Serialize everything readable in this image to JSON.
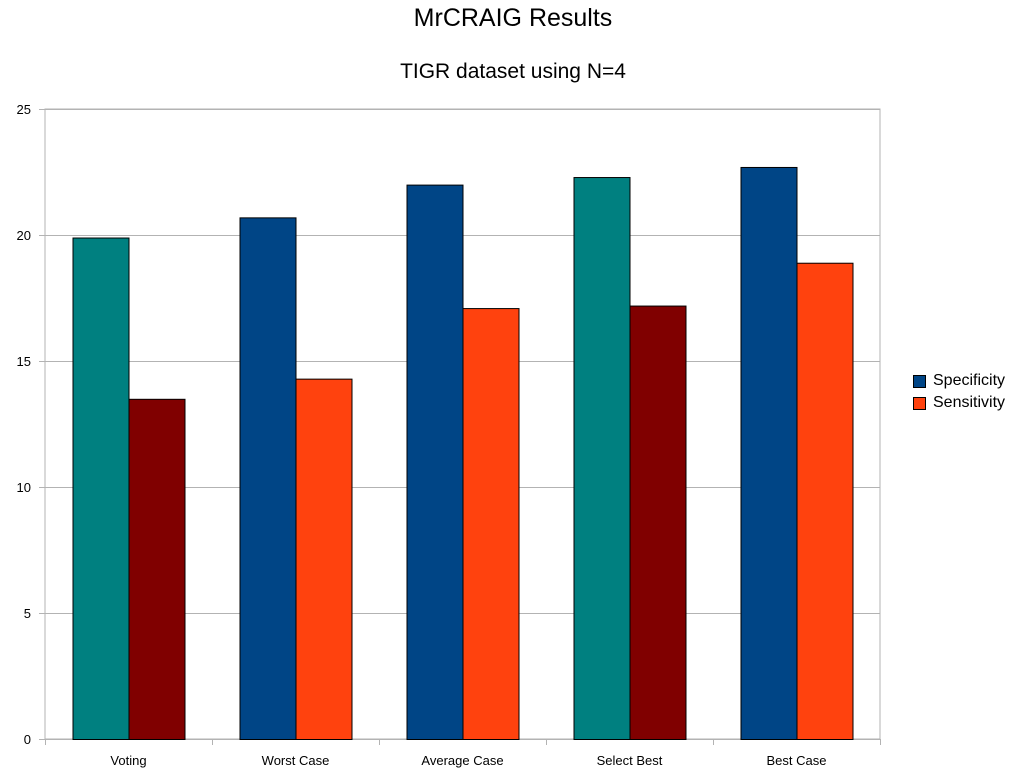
{
  "chart_data": {
    "type": "bar",
    "title": "MrCRAIG Results",
    "subtitle": "TIGR dataset using N=4",
    "xlabel": "",
    "ylabel": "",
    "categories": [
      "Voting",
      "Worst Case",
      "Average Case",
      "Select Best",
      "Best Case"
    ],
    "series": [
      {
        "name": "Specificity",
        "values": [
          19.9,
          20.7,
          22.0,
          22.3,
          22.7
        ]
      },
      {
        "name": "Sensitivity",
        "values": [
          13.5,
          14.3,
          17.1,
          17.2,
          18.9
        ]
      }
    ],
    "ylim": [
      0,
      25
    ],
    "yticks": [
      0,
      5,
      10,
      15,
      20,
      25
    ],
    "grid": true,
    "legend_position": "right",
    "colors": {
      "series": [
        "#004586",
        "#ff420e"
      ],
      "bar_overrides": [
        [
          "#008080",
          "#800000"
        ],
        [
          "#004586",
          "#ff420e"
        ],
        [
          "#004586",
          "#ff420e"
        ],
        [
          "#008080",
          "#800000"
        ],
        [
          "#004586",
          "#ff420e"
        ]
      ]
    }
  }
}
